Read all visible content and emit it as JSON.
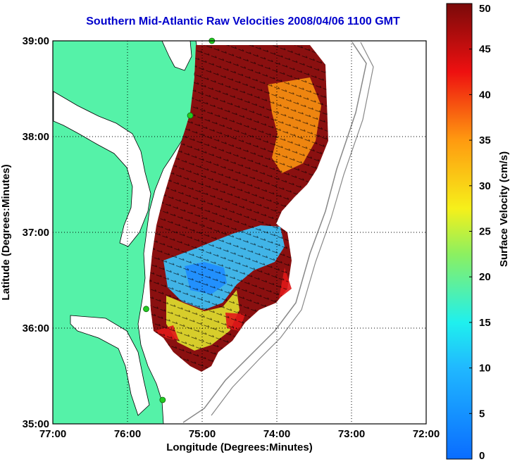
{
  "title": "Southern Mid-Atlantic Raw Velocities 2008/04/06 1100 GMT",
  "chart_data": {
    "type": "heatmap",
    "title": "Southern Mid-Atlantic Raw Velocities 2008/04/06 1100 GMT",
    "xlabel": "Longitude (Degrees:Minutes)",
    "ylabel": "Latitude (Degrees:Minutes)",
    "xlim": [
      -77,
      -72
    ],
    "ylim": [
      35,
      39
    ],
    "x_ticks": [
      "77:00",
      "76:00",
      "75:00",
      "74:00",
      "73:00",
      "72:00"
    ],
    "y_ticks": [
      "35:00",
      "36:00",
      "37:00",
      "38:00",
      "39:00"
    ],
    "grid": true,
    "colorbar": {
      "label": "Surface Velocity (cm/s)",
      "range": [
        0,
        50
      ],
      "ticks": [
        "0",
        "5",
        "10",
        "15",
        "20",
        "25",
        "30",
        "35",
        "40",
        "45",
        "50"
      ]
    },
    "colors": {
      "land": "#55f2a8",
      "water": "#ffffff",
      "frame": "#000000",
      "title": "#0000cc",
      "station": "#22cc22"
    },
    "stations": [
      {
        "lon": -74.87,
        "lat": 39.0
      },
      {
        "lon": -75.16,
        "lat": 38.22
      },
      {
        "lon": -75.75,
        "lat": 36.2
      },
      {
        "lon": -75.53,
        "lat": 35.25
      }
    ]
  }
}
